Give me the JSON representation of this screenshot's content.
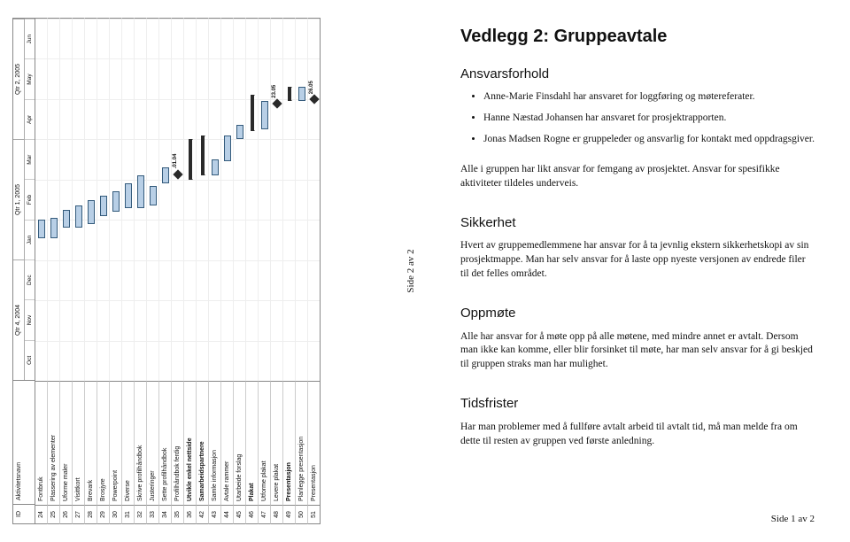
{
  "left": {
    "footer": "Side 2 av 2",
    "headers": {
      "id": "ID",
      "name": "Aktivitetsnavn"
    },
    "timeline": {
      "start": 0,
      "end": 9,
      "quarters": [
        {
          "label": "Qtr 4, 2004",
          "span": 3
        },
        {
          "label": "Qtr 1, 2005",
          "span": 3
        },
        {
          "label": "Qtr 2, 2005",
          "span": 3
        }
      ],
      "months": [
        "Oct",
        "Nov",
        "Dec",
        "Jan",
        "Feb",
        "Mar",
        "Apr",
        "May",
        "Jun"
      ]
    },
    "rows": [
      {
        "id": 24,
        "name": "Fontbruk",
        "bold": false,
        "bars": [
          {
            "type": "normal",
            "start": 3.55,
            "end": 4.0
          }
        ]
      },
      {
        "id": 25,
        "name": "Plassering av elementer",
        "bold": false,
        "bars": [
          {
            "type": "normal",
            "start": 3.55,
            "end": 4.05
          }
        ]
      },
      {
        "id": 26,
        "name": "Uforme maler",
        "bold": false,
        "bars": [
          {
            "type": "normal",
            "start": 3.8,
            "end": 4.25
          }
        ]
      },
      {
        "id": 27,
        "name": "Visittkort",
        "bold": false,
        "bars": [
          {
            "type": "normal",
            "start": 3.8,
            "end": 4.35
          }
        ]
      },
      {
        "id": 28,
        "name": "Brevark",
        "bold": false,
        "bars": [
          {
            "type": "normal",
            "start": 3.9,
            "end": 4.5
          }
        ]
      },
      {
        "id": 29,
        "name": "Brosjyre",
        "bold": false,
        "bars": [
          {
            "type": "normal",
            "start": 4.1,
            "end": 4.6
          }
        ]
      },
      {
        "id": 30,
        "name": "Powerpoint",
        "bold": false,
        "bars": [
          {
            "type": "normal",
            "start": 4.2,
            "end": 4.7
          }
        ]
      },
      {
        "id": 31,
        "name": "Diverse",
        "bold": false,
        "bars": [
          {
            "type": "normal",
            "start": 4.3,
            "end": 4.9
          }
        ]
      },
      {
        "id": 32,
        "name": "Skrive profilhåndbok",
        "bold": false,
        "bars": [
          {
            "type": "normal",
            "start": 4.3,
            "end": 5.1
          }
        ]
      },
      {
        "id": 33,
        "name": "Justeringer",
        "bold": false,
        "bars": [
          {
            "type": "normal",
            "start": 4.35,
            "end": 4.85
          }
        ]
      },
      {
        "id": 34,
        "name": "Sette profilhåndbok",
        "bold": false,
        "bars": [
          {
            "type": "normal",
            "start": 4.9,
            "end": 5.3
          }
        ]
      },
      {
        "id": 35,
        "name": "Profilhåndbok ferdig",
        "bold": false,
        "bars": [
          {
            "type": "milestone",
            "at": 5.05,
            "label": ".01.04"
          }
        ]
      },
      {
        "id": 36,
        "name": "Utvikle enkel nettside",
        "bold": true,
        "bars": [
          {
            "type": "summary",
            "start": 5.0,
            "end": 6.0
          }
        ]
      },
      {
        "id": 42,
        "name": "Samarbeidspartnere",
        "bold": true,
        "bars": [
          {
            "type": "summary",
            "start": 5.1,
            "end": 6.1
          }
        ]
      },
      {
        "id": 43,
        "name": "Samle informasjon",
        "bold": false,
        "bars": [
          {
            "type": "normal",
            "start": 5.1,
            "end": 5.5
          }
        ]
      },
      {
        "id": 44,
        "name": "Avtale rammer",
        "bold": false,
        "bars": [
          {
            "type": "normal",
            "start": 5.45,
            "end": 6.1
          }
        ]
      },
      {
        "id": 45,
        "name": "Utarbeide forslag",
        "bold": false,
        "bars": [
          {
            "type": "normal",
            "start": 6.0,
            "end": 6.35
          }
        ]
      },
      {
        "id": 46,
        "name": "Plakat",
        "bold": true,
        "bars": [
          {
            "type": "summary",
            "start": 6.2,
            "end": 7.1
          }
        ]
      },
      {
        "id": 47,
        "name": "Utforme plakat",
        "bold": false,
        "bars": [
          {
            "type": "normal",
            "start": 6.25,
            "end": 6.95
          }
        ]
      },
      {
        "id": 48,
        "name": "Levere plakat",
        "bold": false,
        "bars": [
          {
            "type": "milestone",
            "at": 6.8,
            "label": "23.05"
          }
        ]
      },
      {
        "id": 49,
        "name": "Presentasjon",
        "bold": true,
        "bars": [
          {
            "type": "summary",
            "start": 6.95,
            "end": 7.3
          }
        ]
      },
      {
        "id": 50,
        "name": "Planlegge presentasjon",
        "bold": false,
        "bars": [
          {
            "type": "normal",
            "start": 6.95,
            "end": 7.3
          }
        ]
      },
      {
        "id": 51,
        "name": "Presentasjon",
        "bold": false,
        "bars": [
          {
            "type": "milestone",
            "at": 6.9,
            "label": "26.05"
          }
        ]
      }
    ],
    "colors": {
      "bar_fill": "#b8cfe6",
      "bar_border": "#345b7c",
      "summary": "#2a2a2a",
      "grid": "#eeeeee",
      "border": "#888888"
    }
  },
  "right": {
    "title": "Vedlegg 2: Gruppeavtale",
    "sec1_heading": "Ansvarsforhold",
    "bullets": [
      "Anne-Marie Finsdahl har ansvaret for loggføring og møtereferater.",
      "Hanne Næstad Johansen har ansvaret for prosjektrapporten.",
      "Jonas Madsen Rogne er gruppeleder og ansvarlig for kontakt med oppdragsgiver."
    ],
    "sec1_para": "Alle i gruppen har likt ansvar for femgang av prosjektet. Ansvar for spesifikke aktiviteter tildeles underveis.",
    "sec2_heading": "Sikkerhet",
    "sec2_para": "Hvert av gruppemedlemmene har ansvar for å ta jevnlig ekstern sikkerhetskopi av sin prosjektmappe. Man har selv ansvar for å laste opp nyeste versjonen av endrede filer til det felles området.",
    "sec3_heading": "Oppmøte",
    "sec3_para": "Alle har ansvar for å møte opp på alle møtene, med mindre annet er avtalt. Dersom man ikke kan komme, eller blir forsinket til møte, har man selv ansvar for å gi beskjed til gruppen straks man har mulighet.",
    "sec4_heading": "Tidsfrister",
    "sec4_para": "Har man problemer med å fullføre avtalt arbeid til avtalt tid, må man melde fra om dette til resten av gruppen ved første anledning.",
    "footer": "Side 1 av 2"
  }
}
